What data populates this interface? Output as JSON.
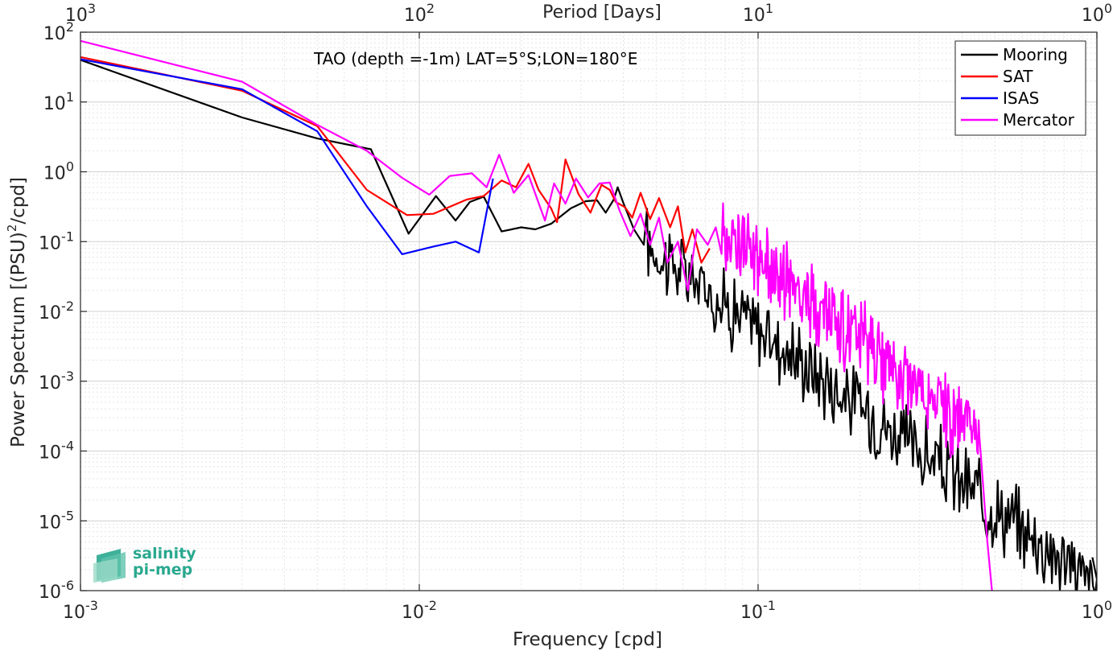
{
  "chart_data": {
    "type": "line",
    "title": "TAO (depth =-1m) LAT=5°S;LON=180°E",
    "xlabel": "Frequency [cpd]",
    "ylabel_main": "Power Spectrum [(PSU)",
    "ylabel_sup": "2",
    "ylabel_tail": "/cpd]",
    "top_xlabel": "Period [Days]",
    "xscale": "log",
    "yscale": "log",
    "xlim": [
      0.001,
      1
    ],
    "ylim": [
      1e-06,
      100
    ],
    "grid": true,
    "legend_position": "top-right",
    "x_ticks": [
      {
        "value": 0.001,
        "base": "10",
        "exp": "-3"
      },
      {
        "value": 0.01,
        "base": "10",
        "exp": "-2"
      },
      {
        "value": 0.1,
        "base": "10",
        "exp": "-1"
      },
      {
        "value": 1,
        "base": "10",
        "exp": "0"
      }
    ],
    "y_ticks": [
      {
        "value": 100,
        "base": "10",
        "exp": "2"
      },
      {
        "value": 10,
        "base": "10",
        "exp": "1"
      },
      {
        "value": 1,
        "base": "10",
        "exp": "0"
      },
      {
        "value": 0.1,
        "base": "10",
        "exp": "-1"
      },
      {
        "value": 0.01,
        "base": "10",
        "exp": "-2"
      },
      {
        "value": 0.001,
        "base": "10",
        "exp": "-3"
      },
      {
        "value": 0.0001,
        "base": "10",
        "exp": "-4"
      },
      {
        "value": 1e-05,
        "base": "10",
        "exp": "-5"
      },
      {
        "value": 1e-06,
        "base": "10",
        "exp": "-6"
      }
    ],
    "top_ticks": [
      {
        "value": 0.001,
        "base": "10",
        "exp": "3"
      },
      {
        "value": 0.01,
        "base": "10",
        "exp": "2"
      },
      {
        "value": 0.1,
        "base": "10",
        "exp": "1"
      },
      {
        "value": 1,
        "base": "10",
        "exp": "0"
      }
    ],
    "series": [
      {
        "name": "Mooring",
        "color": "#000000",
        "generated_tail": {
          "f_start": 0.047,
          "f_end": 1.0,
          "amp_start": 0.09,
          "amp_end": 1.2e-06,
          "drop_points": [
            {
              "f": 0.97,
              "y": 3e-06
            }
          ]
        },
        "points": [
          [
            0.001,
            40
          ],
          [
            0.003,
            6
          ],
          [
            0.005,
            3
          ],
          [
            0.0072,
            2.1
          ],
          [
            0.0093,
            0.13
          ],
          [
            0.0112,
            0.45
          ],
          [
            0.0128,
            0.2
          ],
          [
            0.0141,
            0.37
          ],
          [
            0.0155,
            0.44
          ],
          [
            0.0175,
            0.14
          ],
          [
            0.02,
            0.16
          ],
          [
            0.022,
            0.15
          ],
          [
            0.0245,
            0.18
          ],
          [
            0.028,
            0.3
          ],
          [
            0.031,
            0.38
          ],
          [
            0.0335,
            0.39
          ],
          [
            0.0355,
            0.26
          ],
          [
            0.0375,
            0.4
          ],
          [
            0.0385,
            0.6
          ],
          [
            0.04,
            0.36
          ],
          [
            0.043,
            0.15
          ],
          [
            0.046,
            0.09
          ]
        ]
      },
      {
        "name": "SAT",
        "color": "#ff0000",
        "points": [
          [
            0.001,
            44
          ],
          [
            0.003,
            14.5
          ],
          [
            0.005,
            4.5
          ],
          [
            0.007,
            0.55
          ],
          [
            0.0092,
            0.24
          ],
          [
            0.011,
            0.25
          ],
          [
            0.0138,
            0.4
          ],
          [
            0.0155,
            0.45
          ],
          [
            0.0175,
            0.75
          ],
          [
            0.0193,
            0.6
          ],
          [
            0.021,
            1.3
          ],
          [
            0.0225,
            0.55
          ],
          [
            0.0245,
            0.3
          ],
          [
            0.0255,
            0.19
          ],
          [
            0.027,
            1.5
          ],
          [
            0.0295,
            0.48
          ],
          [
            0.032,
            0.26
          ],
          [
            0.0345,
            0.65
          ],
          [
            0.0365,
            0.55
          ],
          [
            0.038,
            0.37
          ],
          [
            0.0405,
            0.31
          ],
          [
            0.0425,
            0.22
          ],
          [
            0.045,
            0.5
          ],
          [
            0.048,
            0.21
          ],
          [
            0.051,
            0.42
          ],
          [
            0.055,
            0.16
          ],
          [
            0.058,
            0.32
          ],
          [
            0.061,
            0.07
          ],
          [
            0.064,
            0.15
          ],
          [
            0.068,
            0.05
          ],
          [
            0.072,
            0.08
          ]
        ]
      },
      {
        "name": "ISAS",
        "color": "#0000ff",
        "points": [
          [
            0.001,
            41
          ],
          [
            0.003,
            15.2
          ],
          [
            0.005,
            3.8
          ],
          [
            0.007,
            0.32
          ],
          [
            0.0089,
            0.066
          ],
          [
            0.011,
            0.085
          ],
          [
            0.0128,
            0.1
          ],
          [
            0.015,
            0.07
          ],
          [
            0.0165,
            0.8
          ]
        ]
      },
      {
        "name": "Mercator",
        "color": "#ff00ff",
        "generated_tail": {
          "f_start": 0.078,
          "f_end": 0.45,
          "amp_start": 0.15,
          "amp_end": 0.00015,
          "drop_points": [
            {
              "f": 0.46,
              "y": 4e-05
            },
            {
              "f": 0.475,
              "y": 5e-06
            },
            {
              "f": 0.49,
              "y": 1e-06
            }
          ]
        },
        "points": [
          [
            0.001,
            75
          ],
          [
            0.003,
            19.5
          ],
          [
            0.005,
            4.7
          ],
          [
            0.007,
            2
          ],
          [
            0.0089,
            0.82
          ],
          [
            0.0107,
            0.47
          ],
          [
            0.0123,
            0.87
          ],
          [
            0.0143,
            0.95
          ],
          [
            0.0158,
            0.6
          ],
          [
            0.0172,
            1.75
          ],
          [
            0.019,
            0.5
          ],
          [
            0.021,
            0.9
          ],
          [
            0.0235,
            0.2
          ],
          [
            0.025,
            0.68
          ],
          [
            0.027,
            0.35
          ],
          [
            0.029,
            0.8
          ],
          [
            0.0315,
            0.43
          ],
          [
            0.034,
            0.68
          ],
          [
            0.0365,
            0.7
          ],
          [
            0.039,
            0.28
          ],
          [
            0.042,
            0.12
          ],
          [
            0.045,
            0.25
          ],
          [
            0.048,
            0.09
          ],
          [
            0.051,
            0.22
          ],
          [
            0.054,
            0.05
          ],
          [
            0.058,
            0.1
          ],
          [
            0.062,
            0.02
          ],
          [
            0.066,
            0.15
          ],
          [
            0.071,
            0.09
          ],
          [
            0.075,
            0.16
          ]
        ]
      }
    ]
  },
  "logo": {
    "line1": "salinity",
    "line2": "pi-mep"
  }
}
